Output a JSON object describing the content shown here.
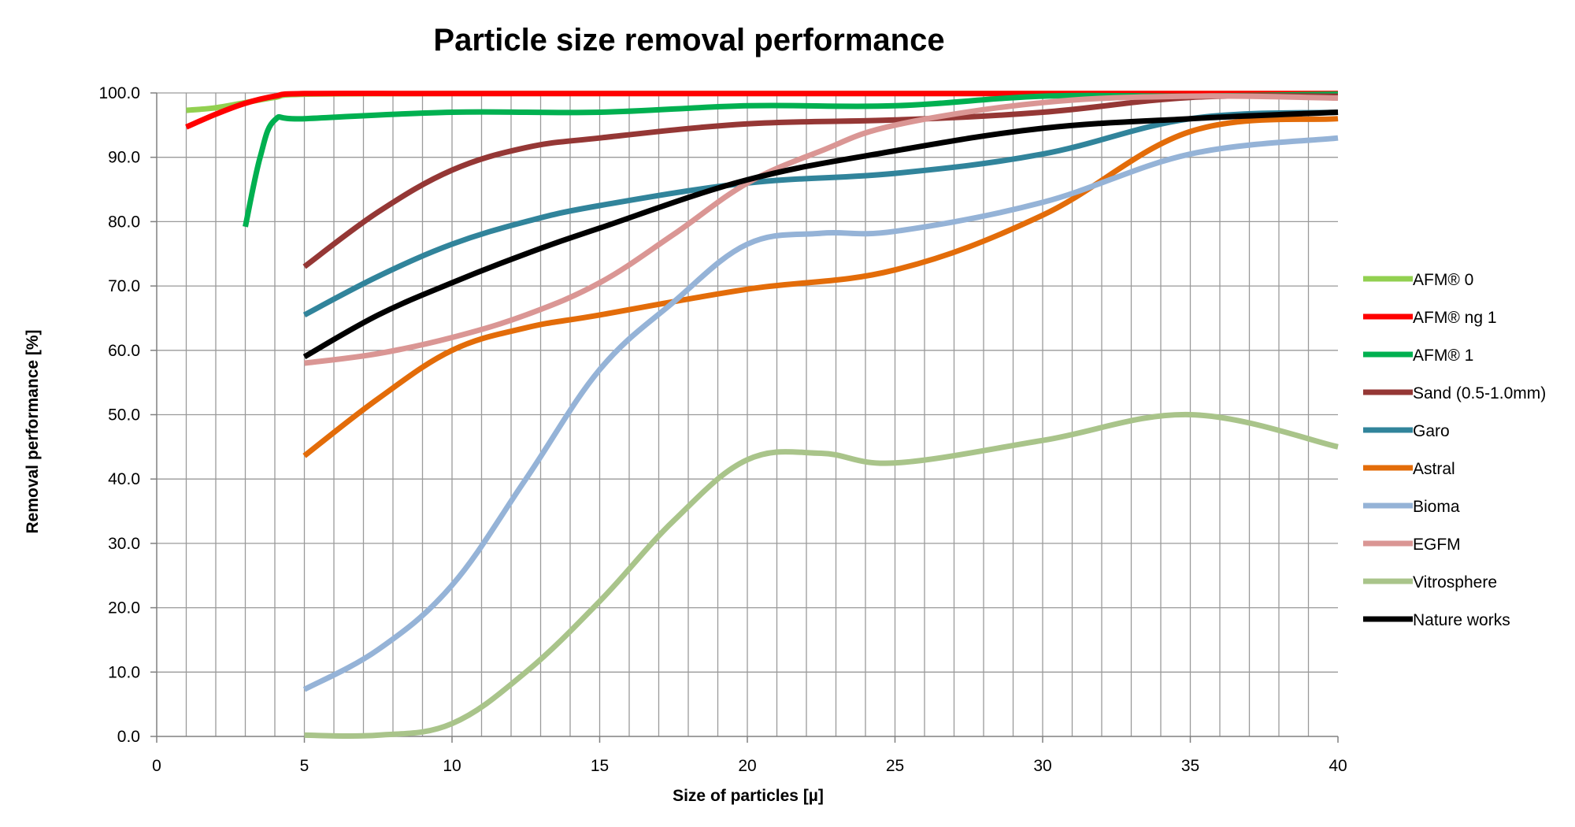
{
  "chart_data": {
    "type": "line",
    "title": "Particle size removal performance",
    "xlabel": "Size of particles [µ]",
    "ylabel": "Removal performance [%]",
    "xlim": [
      0,
      40
    ],
    "ylim": [
      0,
      100
    ],
    "x_ticks": [
      "0",
      "5",
      "10",
      "15",
      "20",
      "25",
      "30",
      "35",
      "40"
    ],
    "y_ticks": [
      "0.0",
      "10.0",
      "20.0",
      "30.0",
      "40.0",
      "50.0",
      "60.0",
      "70.0",
      "80.0",
      "90.0",
      "100.0"
    ],
    "grid": true,
    "legend_position": "right",
    "series": [
      {
        "name": "AFM® 0",
        "color": "#92D050",
        "points": [
          [
            1,
            97.3
          ],
          [
            2,
            97.7
          ],
          [
            3,
            98.5
          ],
          [
            4,
            99.3
          ],
          [
            5,
            99.8
          ],
          [
            10,
            99.9
          ],
          [
            20,
            99.9
          ],
          [
            30,
            99.9
          ],
          [
            40,
            99.9
          ]
        ]
      },
      {
        "name": "AFM® ng 1",
        "color": "#FF0000",
        "points": [
          [
            1,
            94.7
          ],
          [
            2,
            96.7
          ],
          [
            3,
            98.4
          ],
          [
            4,
            99.5
          ],
          [
            5,
            99.9
          ],
          [
            10,
            99.9
          ],
          [
            20,
            99.9
          ],
          [
            30,
            99.9
          ],
          [
            40,
            99.9
          ]
        ]
      },
      {
        "name": "AFM® 1",
        "color": "#00B050",
        "points": [
          [
            3,
            79.2
          ],
          [
            3.5,
            90.0
          ],
          [
            4,
            95.8
          ],
          [
            5,
            96.0
          ],
          [
            10,
            97.0
          ],
          [
            15,
            97.0
          ],
          [
            20,
            98.0
          ],
          [
            25,
            98.0
          ],
          [
            30,
            99.5
          ],
          [
            35,
            99.5
          ],
          [
            40,
            99.8
          ]
        ]
      },
      {
        "name": "Sand (0.5-1.0mm)",
        "color": "#953735",
        "points": [
          [
            5,
            73.0
          ],
          [
            7.5,
            81.5
          ],
          [
            10,
            88.0
          ],
          [
            12.5,
            91.5
          ],
          [
            15,
            93.0
          ],
          [
            20,
            95.2
          ],
          [
            25,
            95.8
          ],
          [
            30,
            97.0
          ],
          [
            35,
            99.3
          ],
          [
            40,
            99.5
          ]
        ]
      },
      {
        "name": "Garo",
        "color": "#31849B",
        "points": [
          [
            5,
            65.5
          ],
          [
            7.5,
            71.5
          ],
          [
            10,
            76.5
          ],
          [
            12.5,
            80.0
          ],
          [
            15,
            82.5
          ],
          [
            20,
            86.0
          ],
          [
            25,
            87.5
          ],
          [
            30,
            90.5
          ],
          [
            35,
            96.0
          ],
          [
            40,
            97.0
          ]
        ]
      },
      {
        "name": "Astral",
        "color": "#E36C09",
        "points": [
          [
            5,
            43.6
          ],
          [
            7.5,
            52.5
          ],
          [
            10,
            60.0
          ],
          [
            12.5,
            63.5
          ],
          [
            15,
            65.5
          ],
          [
            20,
            69.5
          ],
          [
            25,
            72.5
          ],
          [
            30,
            81.0
          ],
          [
            35,
            94.0
          ],
          [
            40,
            96.0
          ]
        ]
      },
      {
        "name": "Bioma",
        "color": "#95B3D7",
        "points": [
          [
            5,
            7.3
          ],
          [
            7.5,
            13.5
          ],
          [
            10,
            23.5
          ],
          [
            12.5,
            40.0
          ],
          [
            15,
            57.0
          ],
          [
            17.5,
            67.5
          ],
          [
            20,
            76.5
          ],
          [
            22.5,
            78.2
          ],
          [
            25,
            78.5
          ],
          [
            30,
            83.0
          ],
          [
            35,
            90.5
          ],
          [
            40,
            93.0
          ]
        ]
      },
      {
        "name": "EGFM",
        "color": "#DA9694",
        "points": [
          [
            5,
            58.0
          ],
          [
            7.5,
            59.5
          ],
          [
            10,
            62.0
          ],
          [
            12.5,
            65.5
          ],
          [
            15,
            70.5
          ],
          [
            17.5,
            78.0
          ],
          [
            20,
            86.0
          ],
          [
            22.5,
            91.0
          ],
          [
            25,
            95.0
          ],
          [
            30,
            98.5
          ],
          [
            35,
            99.5
          ],
          [
            40,
            99.2
          ]
        ]
      },
      {
        "name": "Vitrosphere",
        "color": "#A9C48A",
        "points": [
          [
            5,
            0.2
          ],
          [
            7.5,
            0.2
          ],
          [
            10,
            2.0
          ],
          [
            12.5,
            10.0
          ],
          [
            15,
            21.0
          ],
          [
            17.5,
            33.5
          ],
          [
            20,
            43.0
          ],
          [
            22.5,
            44.0
          ],
          [
            25,
            42.5
          ],
          [
            30,
            46.0
          ],
          [
            35,
            50.0
          ],
          [
            40,
            45.0
          ]
        ]
      },
      {
        "name": "Nature works",
        "color": "#000000",
        "points": [
          [
            5,
            59.0
          ],
          [
            7.5,
            65.5
          ],
          [
            10,
            70.5
          ],
          [
            12.5,
            75.0
          ],
          [
            15,
            79.0
          ],
          [
            20,
            86.5
          ],
          [
            25,
            91.0
          ],
          [
            30,
            94.5
          ],
          [
            35,
            96.0
          ],
          [
            40,
            97.0
          ]
        ]
      }
    ]
  }
}
